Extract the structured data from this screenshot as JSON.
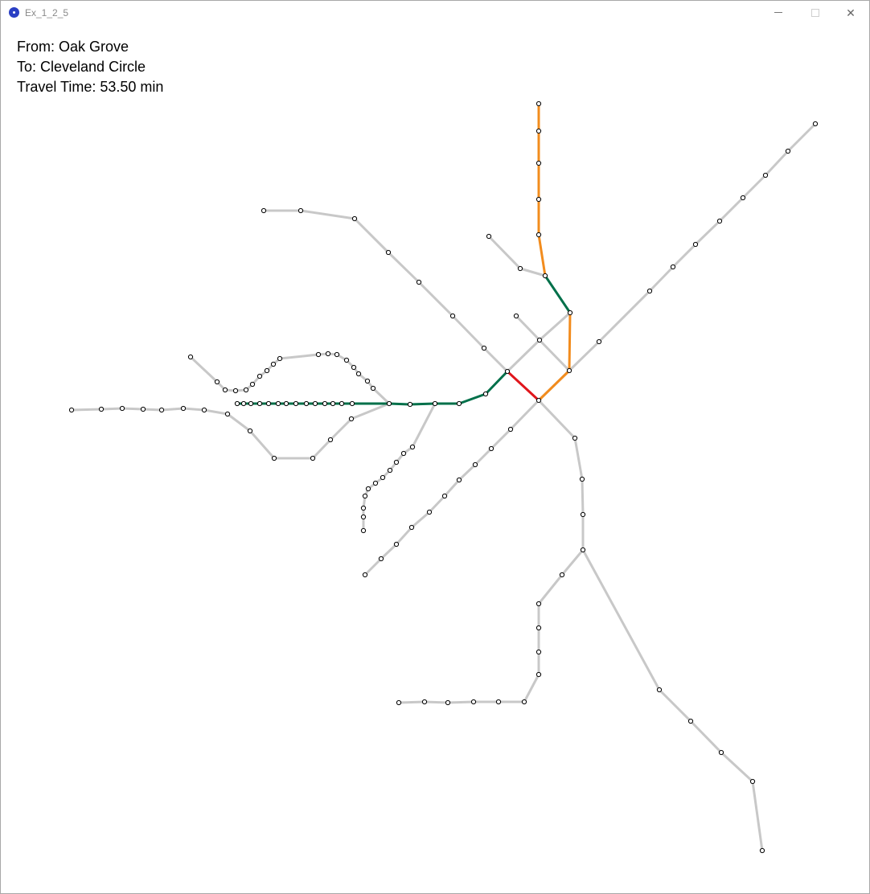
{
  "window": {
    "title": "Ex_1_2_5"
  },
  "route": {
    "from_label": "From: Oak Grove",
    "to_label": "To: Cleveland Circle",
    "time_label": "Travel Time: 53.50 min"
  },
  "colors": {
    "network": "#c8c8c8",
    "orange_line": "#f28c1e",
    "green_line": "#00704a",
    "red_line": "#e0161c",
    "station_fill": "#ffffff",
    "station_stroke": "#000000"
  },
  "icons": {
    "app": "app-logo-icon",
    "minimize": "minimize-icon",
    "maximize": "maximize-icon",
    "close": "close-icon"
  }
}
